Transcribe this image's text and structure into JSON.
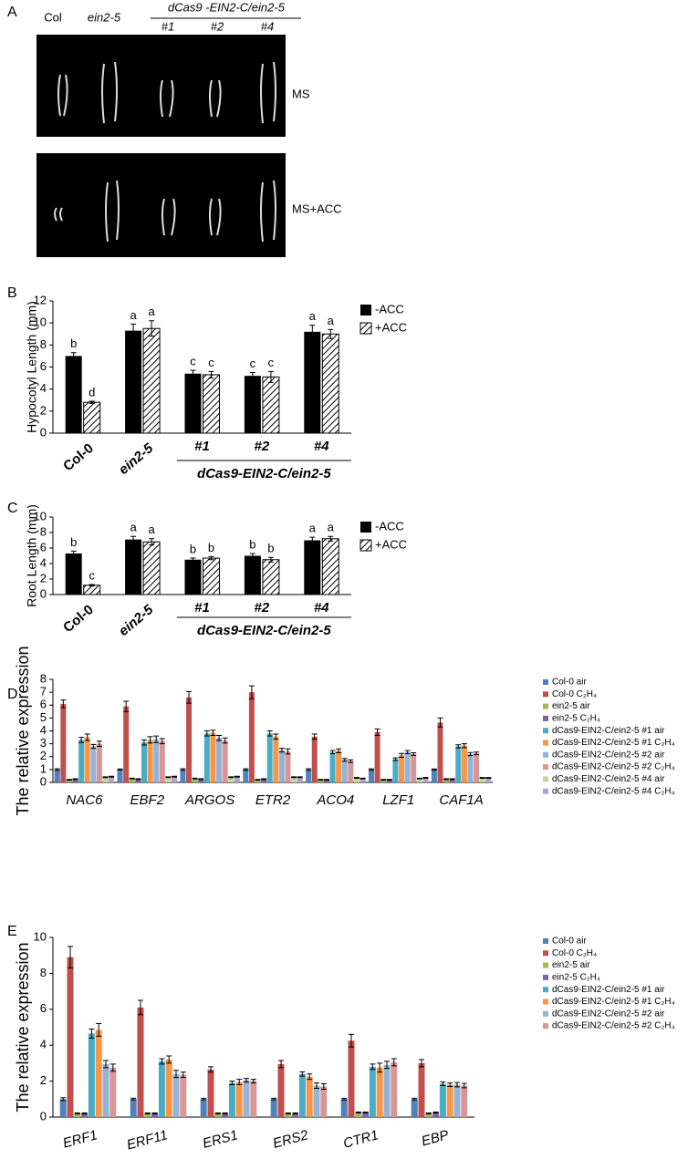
{
  "panel_a": {
    "label": "A",
    "columns": [
      "Col",
      "ein2-5",
      "#1",
      "#2",
      "#4"
    ],
    "group": "dCas9 -EIN2-C/ein2-5",
    "rows": [
      "MS",
      "MS+ACC"
    ]
  },
  "chart_data": [
    {
      "type": "bar",
      "panel": "B",
      "ylabel": "Hypocotyl Length (mm)",
      "categories": [
        "Col-0",
        "ein2-5",
        "#1",
        "#2",
        "#4"
      ],
      "group_label": "dCas9-EIN2-C/ein2-5",
      "ylim": [
        0,
        12
      ],
      "yticks": [
        0,
        2,
        4,
        6,
        8,
        10,
        12
      ],
      "series": [
        {
          "name": "-ACC",
          "color": "#000000",
          "values": [
            7.0,
            9.3,
            5.4,
            5.2,
            9.2
          ],
          "errors": [
            0.3,
            0.6,
            0.3,
            0.3,
            0.6
          ],
          "letters": [
            "b",
            "a",
            "c",
            "c",
            "a"
          ]
        },
        {
          "name": "+ACC",
          "color": "#000000",
          "hatch": true,
          "values": [
            2.8,
            9.5,
            5.3,
            5.1,
            9.0
          ],
          "errors": [
            0.1,
            0.7,
            0.3,
            0.5,
            0.4
          ],
          "letters": [
            "d",
            "a",
            "c",
            "c",
            "a"
          ]
        }
      ]
    },
    {
      "type": "bar",
      "panel": "C",
      "ylabel": "Root Length (mm)",
      "categories": [
        "Col-0",
        "ein2-5",
        "#1",
        "#2",
        "#4"
      ],
      "group_label": "dCas9-EIN2-C/ein2-5",
      "ylim": [
        0,
        10
      ],
      "yticks": [
        0,
        2,
        4,
        6,
        8,
        10
      ],
      "series": [
        {
          "name": "-ACC",
          "color": "#000000",
          "values": [
            5.3,
            7.1,
            4.5,
            5.0,
            7.0
          ],
          "errors": [
            0.3,
            0.4,
            0.2,
            0.3,
            0.4
          ],
          "letters": [
            "b",
            "a",
            "b",
            "b",
            "a"
          ]
        },
        {
          "name": "+ACC",
          "color": "#000000",
          "hatch": true,
          "values": [
            1.2,
            6.8,
            4.7,
            4.5,
            7.2
          ],
          "errors": [
            0.1,
            0.4,
            0.2,
            0.3,
            0.3
          ],
          "letters": [
            "c",
            "a",
            "b",
            "b",
            "a"
          ]
        }
      ]
    },
    {
      "type": "bar",
      "panel": "D",
      "ylabel": "The relative expression",
      "categories": [
        "NAC6",
        "EBF2",
        "ARGOS",
        "ETR2",
        "ACO4",
        "LZF1",
        "CAF1A"
      ],
      "ylim": [
        0,
        8
      ],
      "yticks": [
        0,
        1,
        2,
        3,
        4,
        5,
        6,
        7,
        8
      ],
      "series": [
        {
          "name": "Col-0 air",
          "color": "#4f81bd",
          "values": [
            1.0,
            1.0,
            1.0,
            1.0,
            1.0,
            1.0,
            1.0
          ],
          "errors": [
            0.06,
            0.04,
            0.06,
            0.06,
            0.06,
            0.05,
            0.04
          ]
        },
        {
          "name": "Col-0 C₂H₄",
          "color": "#c0504d",
          "values": [
            6.1,
            5.9,
            6.6,
            7.0,
            3.55,
            3.9,
            4.65
          ],
          "errors": [
            0.3,
            0.4,
            0.45,
            0.5,
            0.2,
            0.25,
            0.35
          ]
        },
        {
          "name": "ein2-5 air",
          "color": "#9bbb59",
          "values": [
            0.2,
            0.3,
            0.3,
            0.2,
            0.2,
            0.2,
            0.25
          ],
          "errors": [
            0.03,
            0.03,
            0.03,
            0.03,
            0.03,
            0.03,
            0.03
          ]
        },
        {
          "name": "ein2-5 C₂H₄",
          "color": "#8064a2",
          "values": [
            0.25,
            0.25,
            0.25,
            0.25,
            0.2,
            0.2,
            0.25
          ],
          "errors": [
            0.03,
            0.03,
            0.03,
            0.03,
            0.03,
            0.03,
            0.03
          ]
        },
        {
          "name": "dCas9-EIN2-C/ein2-5 #1 air",
          "color": "#4bacc6",
          "values": [
            3.3,
            3.1,
            3.8,
            3.8,
            2.35,
            1.8,
            2.8
          ],
          "errors": [
            0.2,
            0.2,
            0.2,
            0.2,
            0.12,
            0.1,
            0.12
          ]
        },
        {
          "name": "dCas9-EIN2-C/ein2-5 #1 C₂H₄",
          "color": "#f79646",
          "values": [
            3.5,
            3.3,
            3.85,
            3.55,
            2.45,
            2.1,
            2.85
          ],
          "errors": [
            0.25,
            0.25,
            0.2,
            0.2,
            0.15,
            0.15,
            0.15
          ]
        },
        {
          "name": "dCas9-EIN2-C/ein2-5 #2 air",
          "color": "#95b3d7",
          "values": [
            2.8,
            3.35,
            3.45,
            2.5,
            1.75,
            2.35,
            2.2
          ],
          "errors": [
            0.15,
            0.25,
            0.2,
            0.15,
            0.1,
            0.12,
            0.12
          ]
        },
        {
          "name": "dCas9-EIN2-C/ein2-5 #2 C₂H₄",
          "color": "#d99694",
          "values": [
            3.0,
            3.2,
            3.25,
            2.4,
            1.65,
            2.2,
            2.25
          ],
          "errors": [
            0.2,
            0.2,
            0.2,
            0.2,
            0.1,
            0.1,
            0.1
          ]
        },
        {
          "name": "dCas9-EIN2-C/ein2-5 #4 air",
          "color": "#c3d69b",
          "values": [
            0.4,
            0.4,
            0.4,
            0.4,
            0.35,
            0.3,
            0.35
          ],
          "errors": [
            0.03,
            0.03,
            0.03,
            0.03,
            0.03,
            0.03,
            0.03
          ]
        },
        {
          "name": "dCas9-EIN2-C/ein2-5 #4 C₂H₄",
          "color": "#b3a2c7",
          "values": [
            0.45,
            0.45,
            0.45,
            0.4,
            0.3,
            0.35,
            0.35
          ],
          "errors": [
            0.03,
            0.03,
            0.03,
            0.03,
            0.03,
            0.03,
            0.03
          ]
        }
      ]
    },
    {
      "type": "bar",
      "panel": "E",
      "ylabel": "The relative expression",
      "categories": [
        "ERF1",
        "ERF11",
        "ERS1",
        "ERS2",
        "CTR1",
        "EBP"
      ],
      "ylim": [
        0,
        10
      ],
      "yticks": [
        0,
        2,
        4,
        6,
        8,
        10
      ],
      "series": [
        {
          "name": "Col-0 air",
          "color": "#4f81bd",
          "values": [
            1.0,
            1.0,
            1.0,
            1.0,
            1.0,
            1.0
          ],
          "errors": [
            0.08,
            0.05,
            0.05,
            0.05,
            0.05,
            0.05
          ]
        },
        {
          "name": "Col-0 C₂H₄",
          "color": "#c0504d",
          "values": [
            8.9,
            6.1,
            2.65,
            2.95,
            4.25,
            3.0
          ],
          "errors": [
            0.6,
            0.4,
            0.15,
            0.2,
            0.35,
            0.2
          ]
        },
        {
          "name": "ein2-5 air",
          "color": "#9bbb59",
          "values": [
            0.2,
            0.2,
            0.2,
            0.2,
            0.25,
            0.2
          ],
          "errors": [
            0.03,
            0.03,
            0.03,
            0.03,
            0.03,
            0.03
          ]
        },
        {
          "name": "ein2-5 C₂H₄",
          "color": "#8064a2",
          "values": [
            0.2,
            0.2,
            0.2,
            0.2,
            0.25,
            0.25
          ],
          "errors": [
            0.03,
            0.03,
            0.03,
            0.03,
            0.03,
            0.03
          ]
        },
        {
          "name": "dCas9-EIN2-C/ein2-5 #1 air",
          "color": "#4bacc6",
          "values": [
            4.65,
            3.1,
            1.9,
            2.4,
            2.8,
            1.85
          ],
          "errors": [
            0.25,
            0.15,
            0.1,
            0.12,
            0.15,
            0.1
          ]
        },
        {
          "name": "dCas9-EIN2-C/ein2-5 #1 C₂H₄",
          "color": "#f79646",
          "values": [
            4.85,
            3.2,
            1.95,
            2.25,
            2.75,
            1.8
          ],
          "errors": [
            0.35,
            0.2,
            0.15,
            0.15,
            0.25,
            0.1
          ]
        },
        {
          "name": "dCas9-EIN2-C/ein2-5 #2 air",
          "color": "#95b3d7",
          "values": [
            2.95,
            2.4,
            2.05,
            1.75,
            2.9,
            1.8
          ],
          "errors": [
            0.2,
            0.2,
            0.1,
            0.15,
            0.2,
            0.12
          ]
        },
        {
          "name": "dCas9-EIN2-C/ein2-5 #2 C₂H₄",
          "color": "#d99694",
          "values": [
            2.75,
            2.35,
            2.0,
            1.7,
            3.05,
            1.75
          ],
          "errors": [
            0.2,
            0.15,
            0.1,
            0.15,
            0.2,
            0.12
          ]
        }
      ]
    }
  ]
}
